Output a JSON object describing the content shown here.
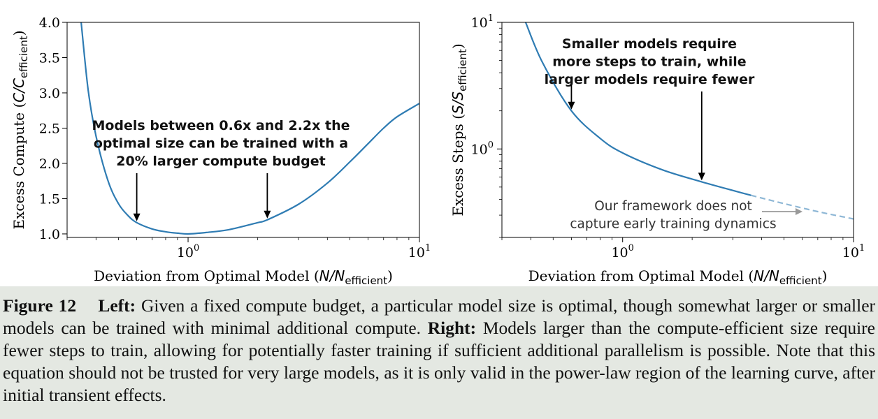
{
  "chart_data": [
    {
      "type": "line",
      "panel": "left",
      "xlabel_prefix": "Deviation from Optimal Model (",
      "xlabel_math": "N/N",
      "xlabel_sub": "efficient",
      "xlabel_suffix": ")",
      "ylabel_prefix": "Excess Compute (",
      "ylabel_math": "C/C",
      "ylabel_sub": "efficient",
      "ylabel_suffix": ")",
      "x_scale": "log",
      "xlim": [
        0.3,
        10
      ],
      "ylim": [
        0.95,
        4.0
      ],
      "x_ticks": [
        {
          "base": "10",
          "exp": "0",
          "value": 1
        },
        {
          "base": "10",
          "exp": "1",
          "value": 10
        }
      ],
      "y_ticks": [
        "1.0",
        "1.5",
        "2.0",
        "2.5",
        "3.0",
        "3.5",
        "4.0"
      ],
      "grid": false,
      "series": [
        {
          "color": "#2f7cb3",
          "x": [
            0.345,
            0.37,
            0.4,
            0.45,
            0.5,
            0.55,
            0.6,
            0.7,
            0.8,
            0.9,
            1.0,
            1.2,
            1.5,
            2.0,
            2.2,
            3.0,
            4.0,
            5.0,
            6.0,
            7.0,
            8.0,
            10.0
          ],
          "y": [
            4.0,
            3.04,
            2.39,
            1.76,
            1.43,
            1.26,
            1.16,
            1.07,
            1.03,
            1.01,
            1.0,
            1.02,
            1.06,
            1.16,
            1.2,
            1.42,
            1.72,
            2.02,
            2.28,
            2.5,
            2.66,
            2.85
          ]
        }
      ],
      "annotation": {
        "lines": [
          "Models between 0.6x and 2.2x the",
          "optimal size can be trained with a",
          "20% larger compute budget"
        ]
      },
      "arrows_at_x": [
        0.6,
        2.2
      ]
    },
    {
      "type": "line",
      "panel": "right",
      "xlabel_prefix": "Deviation from Optimal Model (",
      "xlabel_math": "N/N",
      "xlabel_sub": "efficient",
      "xlabel_suffix": ")",
      "ylabel_prefix": "Excess Steps (",
      "ylabel_math": "S/S",
      "ylabel_sub": "efficient",
      "ylabel_suffix": ")",
      "x_scale": "log",
      "y_scale": "log",
      "xlim": [
        0.3,
        10
      ],
      "ylim": [
        0.2,
        10
      ],
      "x_ticks": [
        {
          "base": "10",
          "exp": "0",
          "value": 1
        },
        {
          "base": "10",
          "exp": "1",
          "value": 10
        }
      ],
      "y_ticks": [
        {
          "base": "10",
          "exp": "0",
          "value": 1
        },
        {
          "base": "10",
          "exp": "1",
          "value": 10
        }
      ],
      "grid": false,
      "series": [
        {
          "color": "#2f7cb3",
          "style": "solid",
          "x": [
            0.38,
            0.45,
            0.6,
            0.8,
            1.0,
            1.5,
            2.2,
            3.0,
            3.6
          ],
          "y": [
            10.0,
            4.8,
            2.0,
            1.21,
            0.93,
            0.68,
            0.55,
            0.47,
            0.43
          ]
        },
        {
          "color": "#8fb8d6",
          "style": "dashed",
          "x": [
            3.6,
            5.0,
            7.0,
            10.0
          ],
          "y": [
            0.43,
            0.37,
            0.32,
            0.28
          ]
        }
      ],
      "annotation": {
        "lines": [
          "Smaller models require",
          "more steps to train, while",
          "larger models require fewer"
        ]
      },
      "arrows_at_x": [
        0.6,
        2.2
      ],
      "note": {
        "lines": [
          "Our framework does not",
          "capture early training dynamics"
        ]
      }
    }
  ],
  "caption": {
    "figure_label": "Figure 12",
    "left_label": "Left:",
    "left_text": " Given a fixed compute budget, a particular model size is optimal, though somewhat larger or smaller models can be trained with minimal additional compute. ",
    "right_label": "Right:",
    "right_text": " Models larger than the compute-efficient size require fewer steps to train, allowing for potentially faster training if sufficient additional parallelism is possible. Note that this equation should not be trusted for very large models, as it is only valid in the power-law region of the learning curve, after initial transient effects."
  }
}
